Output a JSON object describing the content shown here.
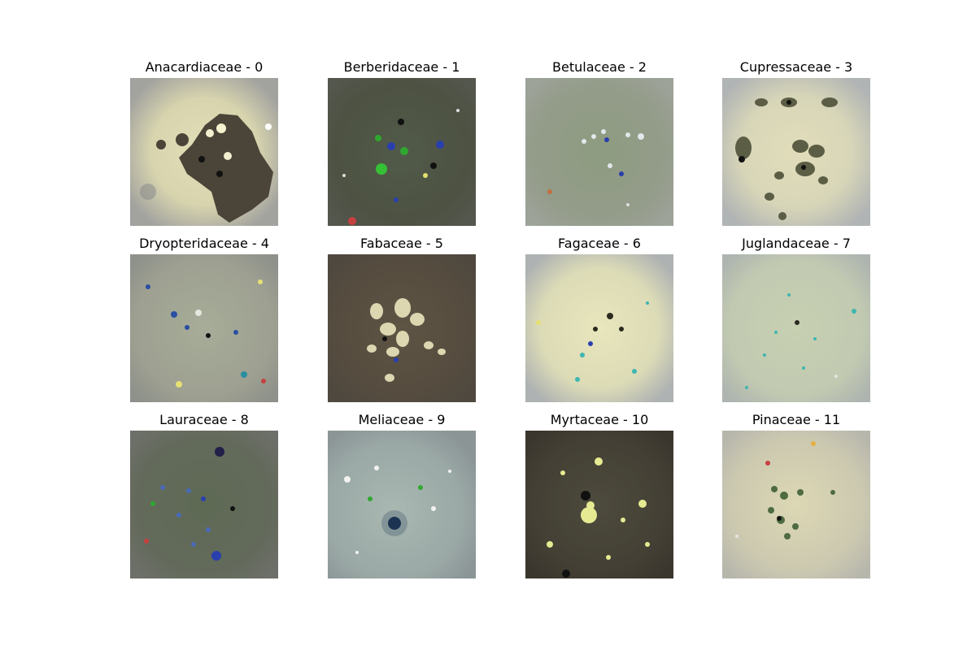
{
  "figure": {
    "panels": [
      {
        "title": "Anacardiaceae - 0",
        "image": "pollen-render",
        "background": "#a2a29f",
        "center_color": "#e3e0b8",
        "blob_color": "#4b4438"
      },
      {
        "title": "Berberidaceae - 1",
        "image": "pollen-render",
        "background": "#54574d",
        "center_color": "#515a48",
        "dot_color": "#2fa82f"
      },
      {
        "title": "Betulaceae - 2",
        "image": "pollen-render",
        "background": "#9ea39a",
        "center_color": "#8d9c80",
        "dot_color": "#e3e6ea"
      },
      {
        "title": "Cupressaceae - 3",
        "image": "pollen-render",
        "background": "#b0b4b4",
        "center_color": "#e1ddbb",
        "blob_color": "#5b5d44"
      },
      {
        "title": "Dryopteridaceae - 4",
        "image": "pollen-render",
        "background": "#8e918b",
        "center_color": "#a6ad98",
        "dot_color": "#2a4ea2"
      },
      {
        "title": "Fabaceae - 5",
        "image": "pollen-render",
        "background": "#4e483f",
        "center_color": "#5e5444",
        "blob_color": "#ddd7b1"
      },
      {
        "title": "Fagaceae - 6",
        "image": "pollen-render",
        "background": "#aeb2b2",
        "center_color": "#e8e6bb",
        "dot_color": "#2a2a20"
      },
      {
        "title": "Juglandaceae - 7",
        "image": "pollen-render",
        "background": "#aeb4b0",
        "center_color": "#c7d0b1",
        "dot_color": "#3fb6b0"
      },
      {
        "title": "Lauraceae - 8",
        "image": "pollen-render",
        "background": "#6d6f69",
        "center_color": "#5e6a54",
        "dot_color": "#4a6ab6"
      },
      {
        "title": "Meliaceae - 9",
        "image": "pollen-render",
        "background": "#8b9595",
        "center_color": "#aab8b2",
        "dot_color": "#1d3452"
      },
      {
        "title": "Myrtaceae - 10",
        "image": "pollen-render",
        "background": "#3a362e",
        "center_color": "#4d4b3d",
        "blob_color": "#e6ea92"
      },
      {
        "title": "Pinaceae - 11",
        "image": "pollen-render",
        "background": "#b7b6ac",
        "center_color": "#dcd8b4",
        "blob_color": "#4e6b42"
      }
    ]
  }
}
